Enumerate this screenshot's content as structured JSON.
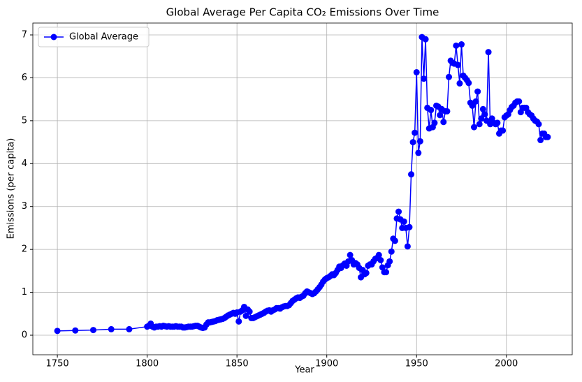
{
  "chart_data": {
    "type": "line",
    "title": "Global Average Per Capita CO₂ Emissions Over Time",
    "xlabel": "Year",
    "ylabel": "Emissions (per capita)",
    "x": [
      1750,
      1760,
      1770,
      1780,
      1790,
      1800,
      1801,
      1802,
      1803,
      1804,
      1805,
      1806,
      1807,
      1808,
      1809,
      1810,
      1811,
      1812,
      1813,
      1814,
      1815,
      1816,
      1817,
      1818,
      1819,
      1820,
      1821,
      1822,
      1823,
      1824,
      1825,
      1826,
      1827,
      1828,
      1829,
      1830,
      1831,
      1832,
      1833,
      1834,
      1835,
      1836,
      1837,
      1838,
      1839,
      1840,
      1841,
      1842,
      1843,
      1844,
      1845,
      1846,
      1847,
      1848,
      1849,
      1850,
      1851,
      1852,
      1853,
      1854,
      1855,
      1856,
      1857,
      1858,
      1859,
      1860,
      1861,
      1862,
      1863,
      1864,
      1865,
      1866,
      1867,
      1868,
      1869,
      1870,
      1871,
      1872,
      1873,
      1874,
      1875,
      1876,
      1877,
      1878,
      1879,
      1880,
      1881,
      1882,
      1883,
      1884,
      1885,
      1886,
      1887,
      1888,
      1889,
      1890,
      1891,
      1892,
      1893,
      1894,
      1895,
      1896,
      1897,
      1898,
      1899,
      1900,
      1901,
      1902,
      1903,
      1904,
      1905,
      1906,
      1907,
      1908,
      1909,
      1910,
      1911,
      1912,
      1913,
      1914,
      1915,
      1916,
      1917,
      1918,
      1919,
      1920,
      1921,
      1922,
      1923,
      1924,
      1925,
      1926,
      1927,
      1928,
      1929,
      1930,
      1931,
      1932,
      1933,
      1934,
      1935,
      1936,
      1937,
      1938,
      1939,
      1940,
      1941,
      1942,
      1943,
      1944,
      1945,
      1946,
      1947,
      1948,
      1949,
      1950,
      1951,
      1952,
      1953,
      1954,
      1955,
      1956,
      1957,
      1958,
      1959,
      1960,
      1961,
      1962,
      1963,
      1964,
      1965,
      1966,
      1967,
      1968,
      1969,
      1970,
      1971,
      1972,
      1973,
      1974,
      1975,
      1976,
      1977,
      1978,
      1979,
      1980,
      1981,
      1982,
      1983,
      1984,
      1985,
      1986,
      1987,
      1988,
      1989,
      1990,
      1991,
      1992,
      1993,
      1994,
      1995,
      1996,
      1997,
      1998,
      1999,
      2000,
      2001,
      2002,
      2003,
      2004,
      2005,
      2006,
      2007,
      2008,
      2009,
      2010,
      2011,
      2012,
      2013,
      2014,
      2015,
      2016,
      2017,
      2018,
      2019,
      2020,
      2021,
      2022,
      2023
    ],
    "series": [
      {
        "name": "Global Average",
        "color": "#0000ff",
        "values": [
          0.1,
          0.11,
          0.12,
          0.14,
          0.14,
          0.2,
          0.22,
          0.27,
          0.2,
          0.18,
          0.2,
          0.2,
          0.21,
          0.2,
          0.22,
          0.21,
          0.2,
          0.21,
          0.2,
          0.2,
          0.2,
          0.21,
          0.2,
          0.2,
          0.2,
          0.18,
          0.18,
          0.19,
          0.2,
          0.2,
          0.2,
          0.21,
          0.22,
          0.22,
          0.2,
          0.18,
          0.17,
          0.18,
          0.25,
          0.3,
          0.3,
          0.31,
          0.32,
          0.33,
          0.35,
          0.36,
          0.37,
          0.38,
          0.4,
          0.43,
          0.46,
          0.48,
          0.5,
          0.52,
          0.5,
          0.53,
          0.32,
          0.55,
          0.58,
          0.66,
          0.45,
          0.6,
          0.55,
          0.4,
          0.4,
          0.42,
          0.44,
          0.46,
          0.48,
          0.5,
          0.52,
          0.55,
          0.57,
          0.58,
          0.55,
          0.58,
          0.6,
          0.63,
          0.63,
          0.62,
          0.65,
          0.67,
          0.68,
          0.68,
          0.7,
          0.75,
          0.8,
          0.83,
          0.86,
          0.88,
          0.87,
          0.9,
          0.92,
          0.98,
          1.02,
          1.0,
          0.98,
          0.96,
          0.98,
          1.02,
          1.07,
          1.12,
          1.18,
          1.25,
          1.3,
          1.33,
          1.35,
          1.38,
          1.42,
          1.4,
          1.45,
          1.52,
          1.6,
          1.57,
          1.63,
          1.67,
          1.62,
          1.72,
          1.87,
          1.75,
          1.65,
          1.68,
          1.65,
          1.57,
          1.35,
          1.52,
          1.42,
          1.45,
          1.62,
          1.65,
          1.65,
          1.72,
          1.78,
          1.8,
          1.87,
          1.75,
          1.58,
          1.47,
          1.47,
          1.63,
          1.72,
          1.95,
          2.25,
          2.2,
          2.72,
          2.88,
          2.7,
          2.5,
          2.65,
          2.5,
          2.07,
          2.52,
          3.75,
          4.5,
          4.72,
          6.13,
          4.25,
          4.52,
          6.95,
          5.98,
          6.9,
          5.3,
          4.82,
          5.25,
          4.85,
          4.95,
          5.35,
          5.33,
          5.13,
          5.27,
          4.97,
          5.22,
          5.22,
          6.02,
          6.4,
          6.35,
          6.33,
          6.75,
          6.3,
          5.87,
          6.78,
          6.05,
          6.0,
          5.95,
          5.88,
          5.42,
          5.35,
          4.85,
          5.45,
          5.68,
          4.92,
          5.05,
          5.27,
          5.15,
          5.0,
          6.6,
          4.92,
          5.05,
          4.95,
          4.92,
          4.95,
          4.7,
          4.77,
          4.77,
          5.08,
          5.12,
          5.15,
          5.25,
          5.32,
          5.35,
          5.42,
          5.45,
          5.45,
          5.2,
          5.3,
          5.3,
          5.3,
          5.2,
          5.15,
          5.12,
          5.05,
          5.0,
          4.98,
          4.92,
          4.55,
          4.7,
          4.7,
          4.62,
          4.62
        ]
      }
    ],
    "xlim": [
      1736.35,
      2036.65
    ],
    "xticks": [
      1750,
      1800,
      1850,
      1900,
      1950,
      2000
    ],
    "ylim": [
      -0.456,
      7.277
    ],
    "yticks": [
      0,
      1,
      2,
      3,
      4,
      5,
      6,
      7
    ],
    "grid": true,
    "legend": "upper left"
  }
}
